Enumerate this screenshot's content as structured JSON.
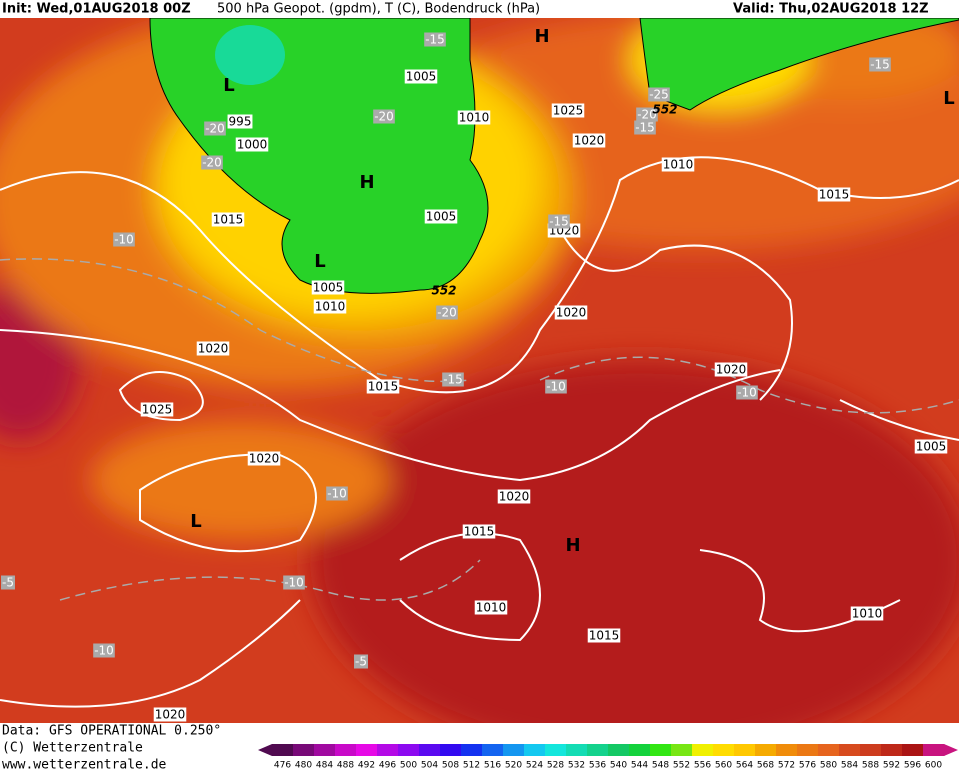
{
  "header": {
    "init": "Init: Wed,01AUG2018 00Z",
    "product": "500 hPa Geopot. (gpdm), T (C), Bodendruck (hPa)",
    "valid": "Valid: Thu,02AUG2018 12Z"
  },
  "map": {
    "isobar_labels": [
      "1005",
      "995",
      "1000",
      "1010",
      "1025",
      "1020",
      "1010",
      "1015",
      "1015",
      "1005",
      "1020",
      "1005",
      "1010",
      "1020",
      "1020",
      "1015",
      "1020",
      "1025",
      "1005",
      "1020",
      "1020",
      "1015",
      "1010",
      "1015",
      "1010",
      "1020"
    ],
    "temperature_labels": [
      "-15",
      "-15",
      "-25",
      "-20",
      "-20",
      "-15",
      "-20",
      "-20",
      "-15",
      "-10",
      "-20",
      "-15",
      "-10",
      "-10",
      "-10",
      "-10",
      "-5",
      "-10",
      "-5"
    ],
    "contour_labels": [
      "552",
      "552"
    ],
    "pressure_centers": [
      "L",
      "H",
      "L",
      "H",
      "L",
      "L",
      "H"
    ]
  },
  "footer": {
    "data": "Data: GFS OPERATIONAL 0.250°",
    "copyright": "(C) Wetterzentrale",
    "url": "www.wetterzentrale.de"
  },
  "colorbar": {
    "ticks": [
      476,
      480,
      484,
      488,
      492,
      496,
      500,
      504,
      508,
      512,
      516,
      520,
      524,
      528,
      532,
      536,
      540,
      544,
      548,
      552,
      556,
      560,
      564,
      568,
      572,
      576,
      580,
      584,
      588,
      592,
      596,
      600
    ],
    "colors": [
      "#500a50",
      "#780a78",
      "#a00aa0",
      "#c80ac8",
      "#e60ae6",
      "#b40ae6",
      "#8c0af0",
      "#5a0af0",
      "#320af0",
      "#1432f0",
      "#1464f0",
      "#1496f0",
      "#14c8f0",
      "#14e6dc",
      "#14dcb4",
      "#14d28c",
      "#14c864",
      "#14d23c",
      "#32e614",
      "#78e614",
      "#f0f000",
      "#ffdc00",
      "#ffc800",
      "#f5aa00",
      "#f08c0a",
      "#eb7814",
      "#e6641e",
      "#d74b1e",
      "#cd3c1e",
      "#be2819",
      "#aa1414",
      "#c8147f"
    ]
  }
}
